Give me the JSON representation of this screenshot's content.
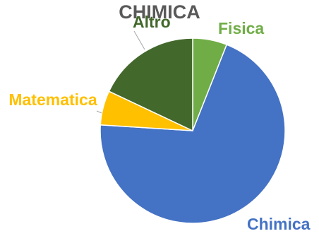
{
  "chart_data": {
    "type": "pie",
    "title": "CHIMICA",
    "categories": [
      "Fisica",
      "Chimica",
      "Matematica",
      "Altro"
    ],
    "values": [
      6,
      70,
      6,
      18
    ],
    "colors": [
      "#70ad47",
      "#4472c4",
      "#ffc000",
      "#43682b"
    ],
    "label_colors": [
      "#70ad47",
      "#4472c4",
      "#ffc000",
      "#43682b"
    ],
    "start_angle_deg": 0,
    "direction": "clockwise",
    "legend": "none",
    "data_labels": "category-name-outside"
  }
}
